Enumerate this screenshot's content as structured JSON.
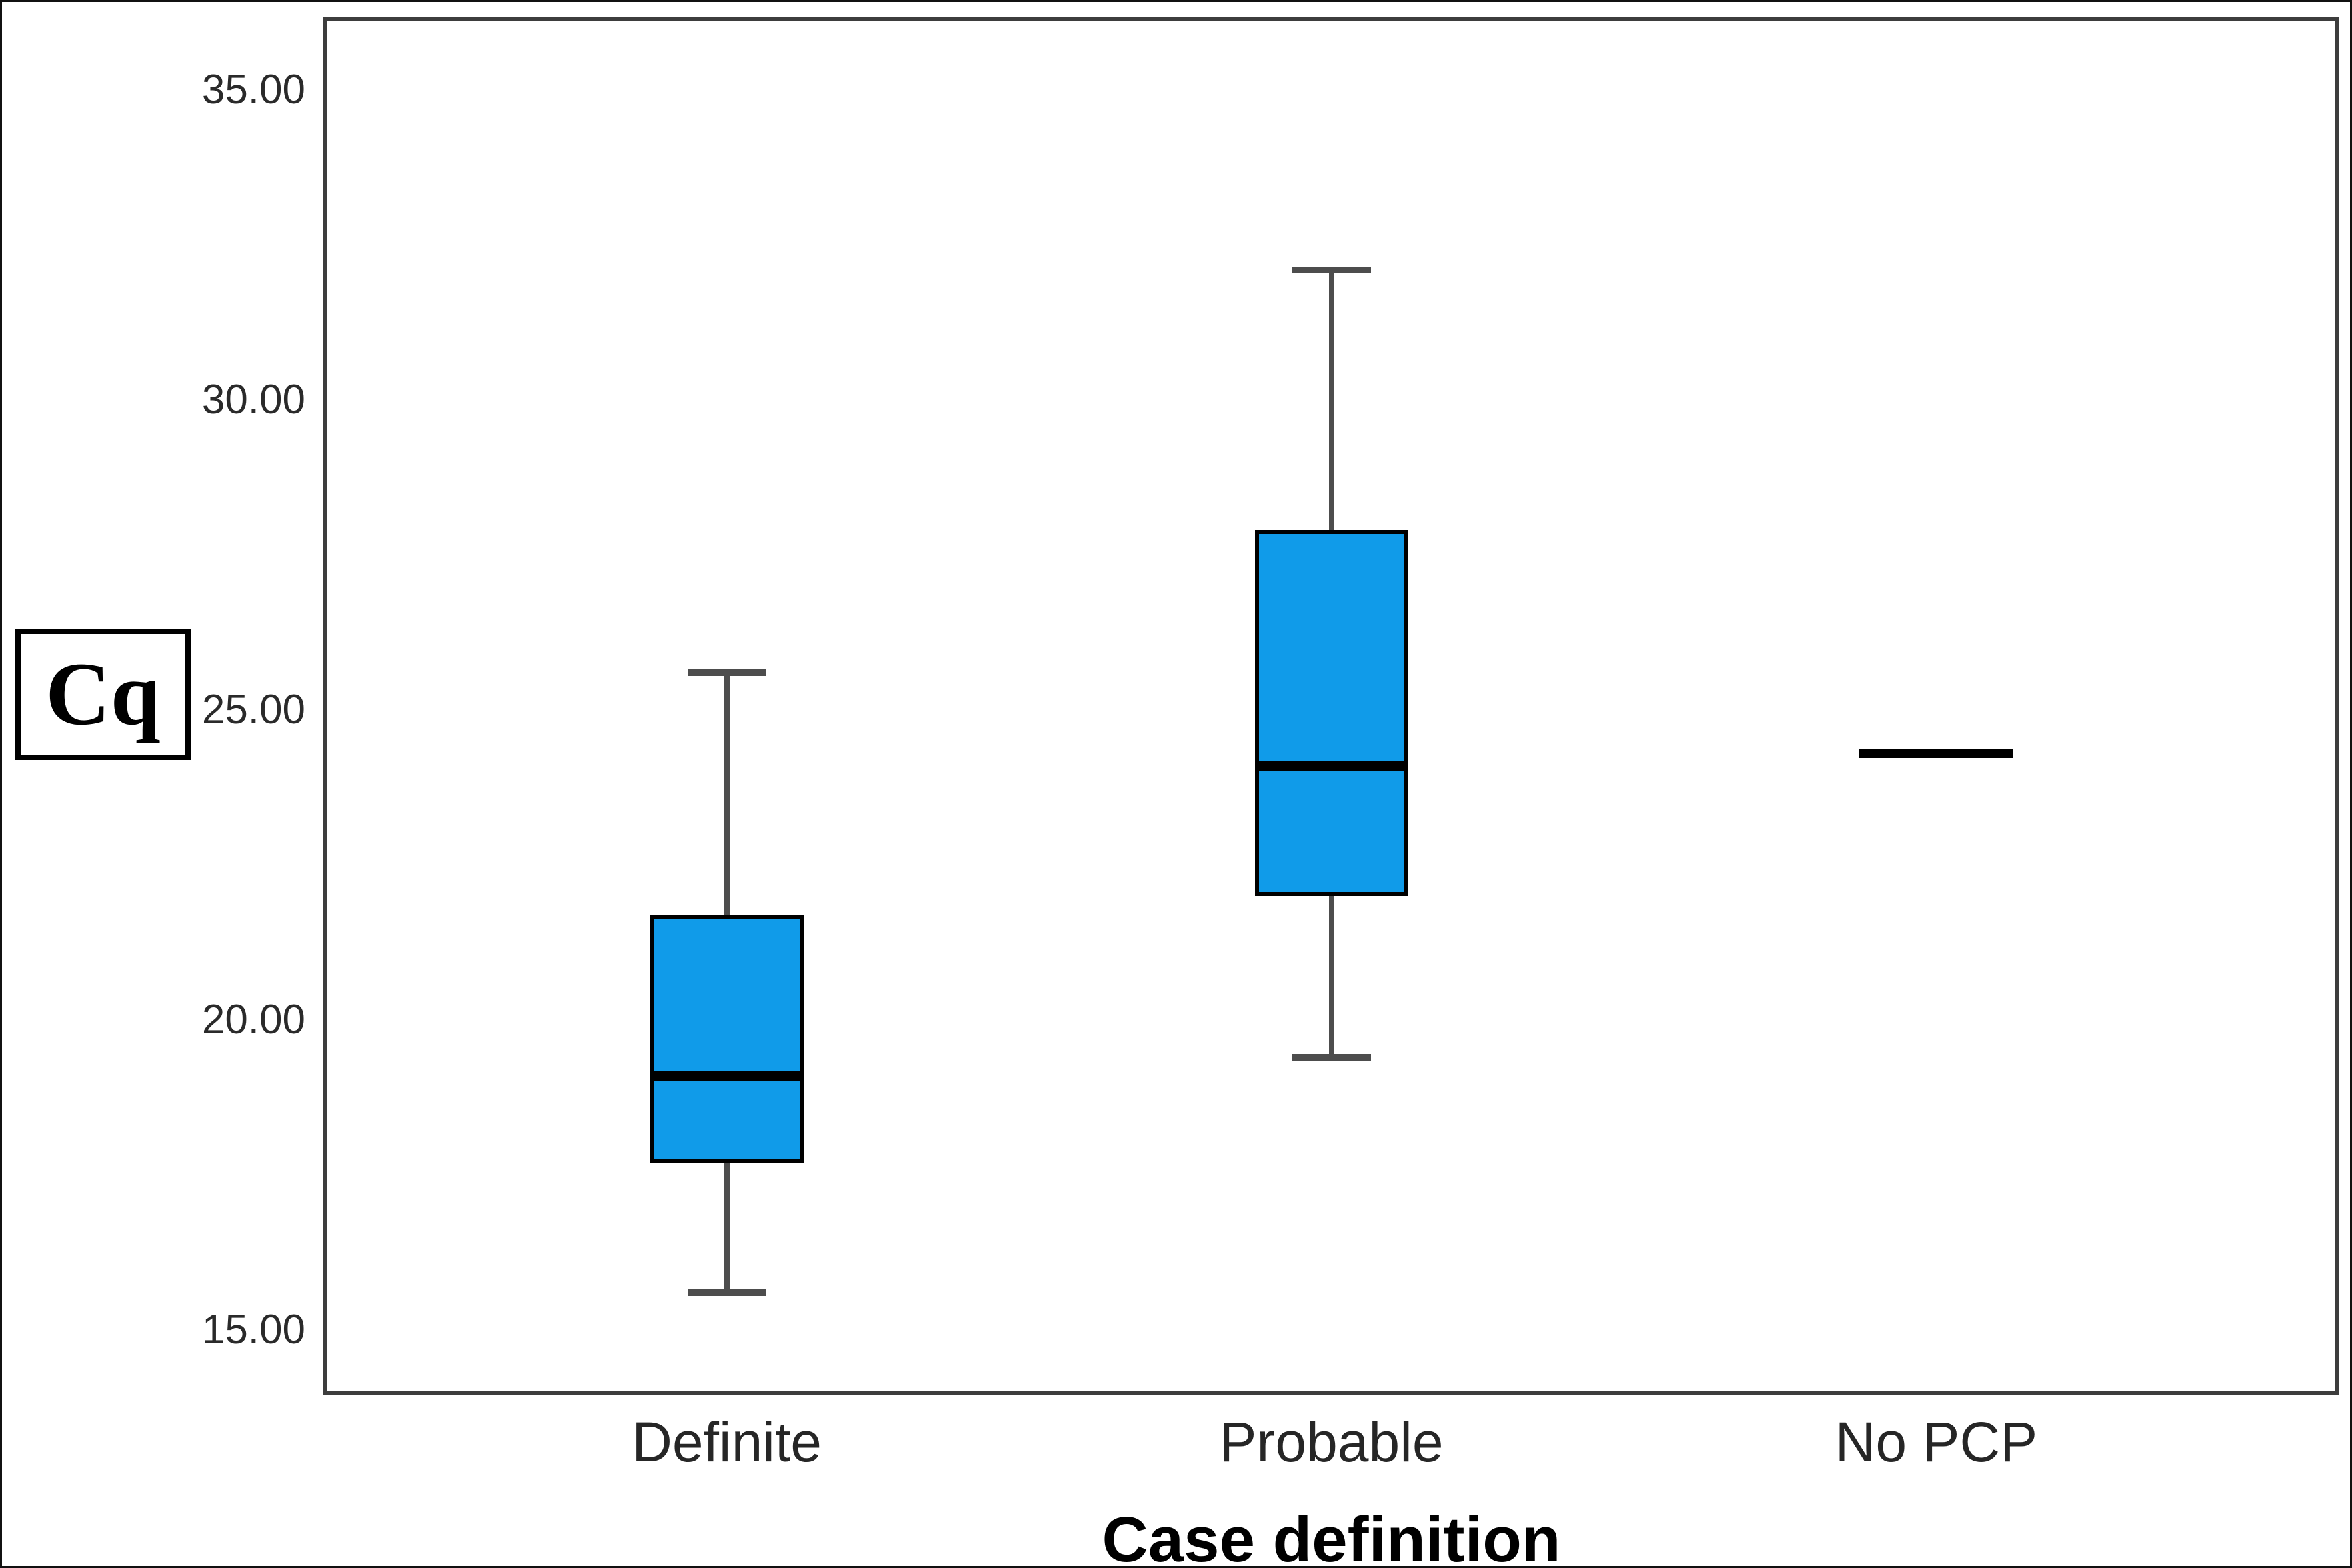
{
  "chart_data": {
    "type": "boxplot",
    "title": "",
    "ylabel": "Cq",
    "xlabel": "Case definition",
    "categories": [
      "Definite",
      "Probable",
      "No PCP"
    ],
    "y_ticks": [
      {
        "value": 35,
        "label": "35.00"
      },
      {
        "value": 30,
        "label": "30.00"
      },
      {
        "value": 25,
        "label": "25.00"
      },
      {
        "value": 20,
        "label": "20.00"
      },
      {
        "value": 15,
        "label": "15.00"
      }
    ],
    "ylim": [
      13.9,
      36.2
    ],
    "grid": false,
    "legend": false,
    "series": [
      {
        "name": "Definite",
        "whisker_low": 15.6,
        "q1": 17.7,
        "median": 19.1,
        "q3": 21.7,
        "whisker_high": 25.6
      },
      {
        "name": "Probable",
        "whisker_low": 19.4,
        "q1": 22.0,
        "median": 24.1,
        "q3": 27.9,
        "whisker_high": 32.1
      },
      {
        "name": "No PCP",
        "single_value": 24.3
      }
    ],
    "colors": {
      "box_fill": "#109BE9",
      "box_border": "#000000",
      "median": "#000000",
      "whisker": "#4D4D4D",
      "frame": "#3D3D3D"
    }
  }
}
